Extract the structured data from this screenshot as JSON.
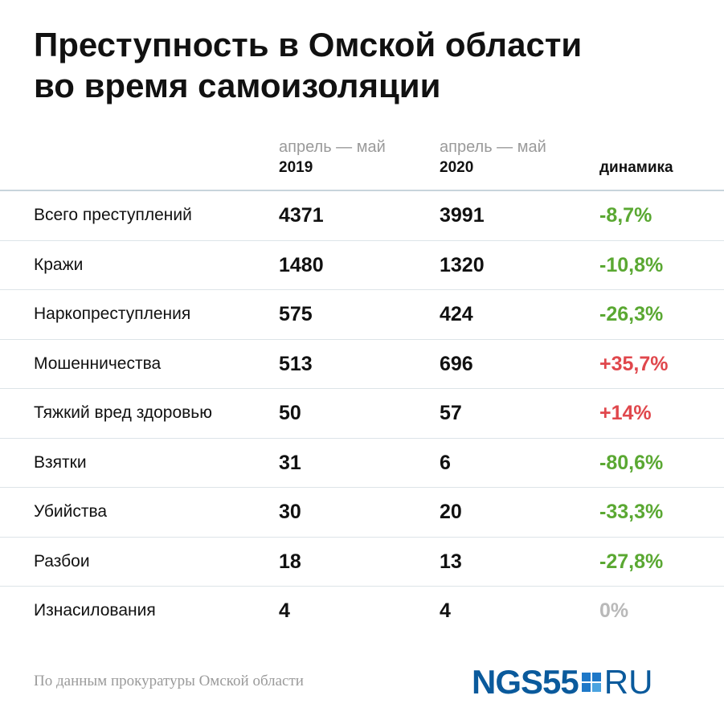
{
  "header": {
    "title_line1": "Преступность в Омской области",
    "title_line2": "во время самоизоляции"
  },
  "chart_data": {
    "type": "table",
    "columns": [
      {
        "period": "апрель — май",
        "year": "2019"
      },
      {
        "period": "апрель — май",
        "year": "2020"
      },
      {
        "label": "динамика"
      }
    ],
    "rows": [
      {
        "name": "Всего преступлений",
        "y2019": "4371",
        "y2020": "3991",
        "dynamics": "-8,7%",
        "trend": "down"
      },
      {
        "name": "Кражи",
        "y2019": "1480",
        "y2020": "1320",
        "dynamics": "-10,8%",
        "trend": "down"
      },
      {
        "name": "Наркопреступления",
        "y2019": "575",
        "y2020": "424",
        "dynamics": "-26,3%",
        "trend": "down"
      },
      {
        "name": "Мошенничества",
        "y2019": "513",
        "y2020": "696",
        "dynamics": "+35,7%",
        "trend": "up"
      },
      {
        "name": "Тяжкий вред здоровью",
        "y2019": "50",
        "y2020": "57",
        "dynamics": "+14%",
        "trend": "up"
      },
      {
        "name": "Взятки",
        "y2019": "31",
        "y2020": "6",
        "dynamics": "-80,6%",
        "trend": "down"
      },
      {
        "name": "Убийства",
        "y2019": "30",
        "y2020": "20",
        "dynamics": "-33,3%",
        "trend": "down"
      },
      {
        "name": "Разбои",
        "y2019": "18",
        "y2020": "13",
        "dynamics": "-27,8%",
        "trend": "down"
      },
      {
        "name": "Изнасилования",
        "y2019": "4",
        "y2020": "4",
        "dynamics": "0%",
        "trend": "flat"
      }
    ]
  },
  "colors": {
    "down": "#5aa832",
    "up": "#e0474c",
    "flat": "#b9b9b9",
    "logo_blue": "#0a5a9c"
  },
  "footer": {
    "source": "По данным прокуратуры Омской области",
    "logo_ngs": "NGS55",
    "logo_ru": "RU",
    "logo_icon": "squares-icon"
  }
}
